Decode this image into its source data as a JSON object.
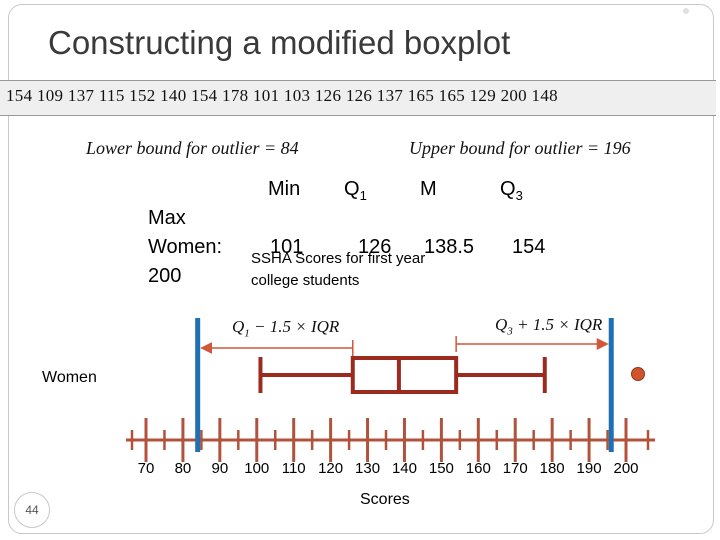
{
  "title": "Constructing a modified boxplot",
  "data_values": "154 109 137 115 152 140 154 178 101 103 126 126 137 165 165 129 200 148",
  "bounds": {
    "lower_text": "Lower bound for outlier = 84",
    "upper_text": "Upper bound for outlier = 196"
  },
  "summary": {
    "headers": {
      "min": "Min",
      "q1": "Q",
      "q1_sub": "1",
      "median": "M",
      "q3": "Q",
      "q3_sub": "3",
      "max": "Max"
    },
    "row_label": "Women:",
    "values": {
      "min": "101",
      "q1": "126",
      "median": "138.5",
      "q3": "154",
      "max": "200"
    }
  },
  "caption": {
    "line1": "SSHA Scores for first year",
    "line2": "college students"
  },
  "formulas": {
    "lower_prefix": "Q",
    "lower_sub": "1",
    "lower_suffix": " − 1.5 × IQR",
    "upper_prefix": "Q",
    "upper_sub": "3",
    "upper_suffix": " + 1.5 × IQR"
  },
  "group_label": "Women",
  "axis": {
    "title": "Scores",
    "ticks": [
      "70",
      "80",
      "90",
      "100",
      "110",
      "120",
      "130",
      "140",
      "150",
      "160",
      "170",
      "180",
      "190",
      "200"
    ],
    "min": 70,
    "max": 200
  },
  "boxplot": {
    "whisker_low": 101,
    "q1": 126,
    "median": 138.5,
    "q3": 154,
    "whisker_high": 178,
    "outliers": [
      200
    ],
    "lower_fence": 84,
    "upper_fence": 196
  },
  "colors": {
    "box": "#9b2b1f",
    "fence": "#1f6fb5",
    "outlier": "#d0532a",
    "axis": "#b0533a"
  },
  "slide_number": "44"
}
